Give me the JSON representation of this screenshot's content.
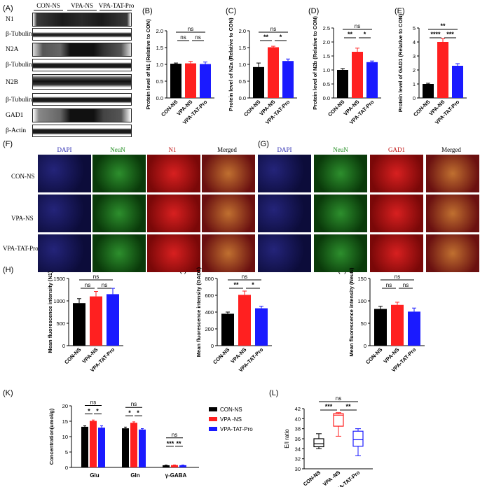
{
  "panel_labels": {
    "A": "(A)",
    "B": "(B)",
    "C": "(C)",
    "D": "(D)",
    "E": "(E)",
    "F": "(F)",
    "G": "(G)",
    "H": "(H)",
    "I": "(I)",
    "J": "(J)",
    "K": "(K)",
    "L": "(L)"
  },
  "blot": {
    "groups": [
      "CON-NS",
      "VPA-NS",
      "VPA-TAT-Pro"
    ],
    "rows": [
      "N1",
      "β-Tubulin",
      "N2A",
      "β-Tubulin",
      "N2B",
      "β-Tubulin",
      "GAD1",
      "β-Actin"
    ]
  },
  "if_headers_f": [
    "DAPI",
    "NeuN",
    "N1",
    "Merged"
  ],
  "if_headers_g": [
    "DAPI",
    "NeuN",
    "GAD1",
    "Merged"
  ],
  "if_rows": [
    "CON-NS",
    "VPA-NS",
    "VPA-TAT-Pro"
  ],
  "colors": {
    "black": "#000000",
    "red": "#ff2020",
    "blue": "#1a1aff",
    "dapi": "#1a1a6e",
    "neun": "#2a9a2a",
    "red_stain": "#b01010"
  },
  "chart_data": [
    {
      "id": "B",
      "type": "bar",
      "categories": [
        "CON-NS",
        "VPA-NS",
        "VPA-TAT-Pro"
      ],
      "values": [
        1.02,
        1.03,
        1.01
      ],
      "errors": [
        0.02,
        0.06,
        0.06
      ],
      "ylabel": "Protein level of N1 (Relative to CON)",
      "ylim": [
        0,
        2.0
      ],
      "yticks": [
        0.0,
        0.5,
        1.0,
        1.5,
        2.0
      ],
      "sig": [
        {
          "from": 0,
          "to": 1,
          "label": "ns",
          "level": 1
        },
        {
          "from": 1,
          "to": 2,
          "label": "ns",
          "level": 1
        },
        {
          "from": 0,
          "to": 2,
          "label": "ns",
          "level": 2
        }
      ]
    },
    {
      "id": "C",
      "type": "bar",
      "categories": [
        "CON-NS",
        "VPA-NS",
        "VPA-TAT-Pro"
      ],
      "values": [
        0.92,
        1.51,
        1.1
      ],
      "errors": [
        0.12,
        0.03,
        0.06
      ],
      "ylabel": "Protein level of N2a (Relative to CON)",
      "ylim": [
        0,
        2.0
      ],
      "yticks": [
        0.0,
        0.5,
        1.0,
        1.5,
        2.0
      ],
      "sig": [
        {
          "from": 0,
          "to": 1,
          "label": "**",
          "level": 1
        },
        {
          "from": 1,
          "to": 2,
          "label": "*",
          "level": 1
        },
        {
          "from": 0,
          "to": 2,
          "label": "ns",
          "level": 2
        }
      ]
    },
    {
      "id": "D",
      "type": "bar",
      "categories": [
        "CON-NS",
        "VPA-NS",
        "VPA-TAT-Pro"
      ],
      "values": [
        1.0,
        1.65,
        1.28
      ],
      "errors": [
        0.05,
        0.13,
        0.04
      ],
      "ylabel": "Protein level of N2b (Relative to CON)",
      "ylim": [
        0,
        2.5
      ],
      "yticks": [
        0.0,
        0.5,
        1.0,
        1.5,
        2.0,
        2.5
      ],
      "sig": [
        {
          "from": 0,
          "to": 1,
          "label": "**",
          "level": 1
        },
        {
          "from": 1,
          "to": 2,
          "label": "*",
          "level": 1
        },
        {
          "from": 0,
          "to": 2,
          "label": "ns",
          "level": 2
        }
      ]
    },
    {
      "id": "E",
      "type": "bar",
      "categories": [
        "CON-NS",
        "VPA-NS",
        "VPA-TAT-Pro"
      ],
      "values": [
        1.0,
        4.0,
        2.3
      ],
      "errors": [
        0.05,
        0.25,
        0.15
      ],
      "ylabel": "Protein level of GAD1 (Relative to CON)",
      "ylim": [
        0,
        5
      ],
      "yticks": [
        0,
        1,
        2,
        3,
        4,
        5
      ],
      "sig": [
        {
          "from": 0,
          "to": 1,
          "label": "****",
          "level": 1
        },
        {
          "from": 1,
          "to": 2,
          "label": "***",
          "level": 1
        },
        {
          "from": 0,
          "to": 2,
          "label": "**",
          "level": 2
        }
      ]
    },
    {
      "id": "H",
      "type": "bar",
      "categories": [
        "CON-NS",
        "VPA-NS",
        "VPA-TAT-Pro"
      ],
      "values": [
        950,
        1100,
        1150
      ],
      "errors": [
        100,
        110,
        130
      ],
      "ylabel": "Mean fluorescence intensity (N1)",
      "ylim": [
        0,
        1500
      ],
      "yticks": [
        0,
        500,
        1000,
        1500
      ],
      "sig": [
        {
          "from": 0,
          "to": 1,
          "label": "ns",
          "level": 1
        },
        {
          "from": 1,
          "to": 2,
          "label": "ns",
          "level": 1
        },
        {
          "from": 0,
          "to": 2,
          "label": "ns",
          "level": 2
        }
      ]
    },
    {
      "id": "I",
      "type": "bar",
      "categories": [
        "CON-NS",
        "VPA-NS",
        "VPA-TAT-Pro"
      ],
      "values": [
        380,
        605,
        445
      ],
      "errors": [
        20,
        45,
        25
      ],
      "ylabel": "Mean fluorescence intensity (GAD1)",
      "ylim": [
        0,
        800
      ],
      "yticks": [
        0,
        200,
        400,
        600,
        800
      ],
      "sig": [
        {
          "from": 0,
          "to": 1,
          "label": "**",
          "level": 1
        },
        {
          "from": 1,
          "to": 2,
          "label": "*",
          "level": 1
        },
        {
          "from": 0,
          "to": 2,
          "label": "ns",
          "level": 2
        }
      ]
    },
    {
      "id": "J",
      "type": "bar",
      "categories": [
        "CON-NS",
        "VPA-NS",
        "VPA-TAT-Pro"
      ],
      "values": [
        82,
        91,
        76
      ],
      "errors": [
        6,
        6,
        8
      ],
      "ylabel": "Mean fluorescence intensity (NeuN)",
      "ylim": [
        0,
        150
      ],
      "yticks": [
        0,
        50,
        100,
        150
      ],
      "sig": [
        {
          "from": 0,
          "to": 1,
          "label": "ns",
          "level": 1
        },
        {
          "from": 1,
          "to": 2,
          "label": "ns",
          "level": 1
        },
        {
          "from": 0,
          "to": 2,
          "label": "ns",
          "level": 2
        }
      ]
    },
    {
      "id": "K",
      "type": "bar",
      "categories": [
        "Glu",
        "Gln",
        "γ-GABA"
      ],
      "series": [
        {
          "name": "CON-NS",
          "values": [
            13.2,
            12.7,
            0.7
          ],
          "errors": [
            0.3,
            0.4,
            0.05
          ]
        },
        {
          "name": "VPA -NS",
          "values": [
            15.1,
            14.5,
            0.75
          ],
          "errors": [
            0.3,
            0.3,
            0.05
          ]
        },
        {
          "name": "VPA-TAT-Pro",
          "values": [
            12.9,
            12.3,
            0.72
          ],
          "errors": [
            0.6,
            0.3,
            0.05
          ]
        }
      ],
      "ylabel": "Concentration(umol/g)",
      "ylim": [
        0,
        20
      ],
      "yticks": [
        0,
        5,
        10,
        15,
        20
      ],
      "legend": "right"
    },
    {
      "id": "L",
      "type": "box",
      "categories": [
        "CON-NS",
        "VPA -NS",
        "VPA-TAT-Pro"
      ],
      "boxes": [
        {
          "min": 34,
          "q1": 34.4,
          "median": 35,
          "q3": 36,
          "max": 37
        },
        {
          "min": 36.5,
          "q1": 38.5,
          "median": 40.7,
          "q3": 41,
          "max": 41.2
        },
        {
          "min": 32.6,
          "q1": 34.5,
          "median": 35.8,
          "q3": 37.5,
          "max": 38
        }
      ],
      "ylabel": "E/I ratio",
      "ylim": [
        30,
        42
      ],
      "yticks": [
        30,
        32,
        34,
        36,
        38,
        40,
        42
      ],
      "sig": [
        {
          "from": 0,
          "to": 1,
          "label": "***",
          "level": 1
        },
        {
          "from": 1,
          "to": 2,
          "label": "**",
          "level": 1
        },
        {
          "from": 0,
          "to": 2,
          "label": "ns",
          "level": 2
        }
      ]
    }
  ]
}
